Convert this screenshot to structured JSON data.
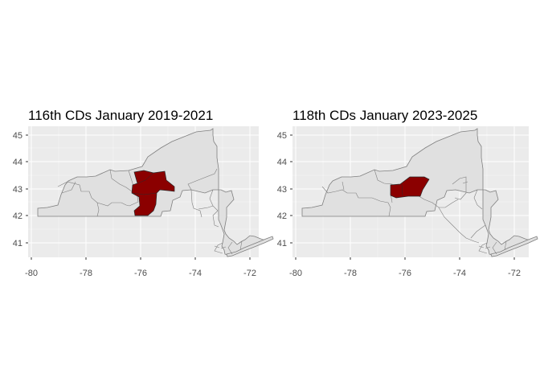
{
  "panels": [
    {
      "title": "116th CDs January 2019-2021",
      "highlight": "116"
    },
    {
      "title": "118th CDs January 2023-2025",
      "highlight": "118"
    }
  ],
  "axes": {
    "x_ticks": [
      "-80",
      "-78",
      "-76",
      "-74",
      "-72"
    ],
    "y_ticks": [
      "45",
      "44",
      "43",
      "42",
      "41"
    ],
    "xlim": [
      -80.1,
      -71.5
    ],
    "ylim": [
      40.3,
      45.2
    ]
  },
  "colors": {
    "panel_bg": "#ebebeb",
    "gridline": "#ffffff",
    "state_fill": "#e0e0e0",
    "border": "#7f7f7f",
    "highlight_fill": "#8b0000"
  }
}
